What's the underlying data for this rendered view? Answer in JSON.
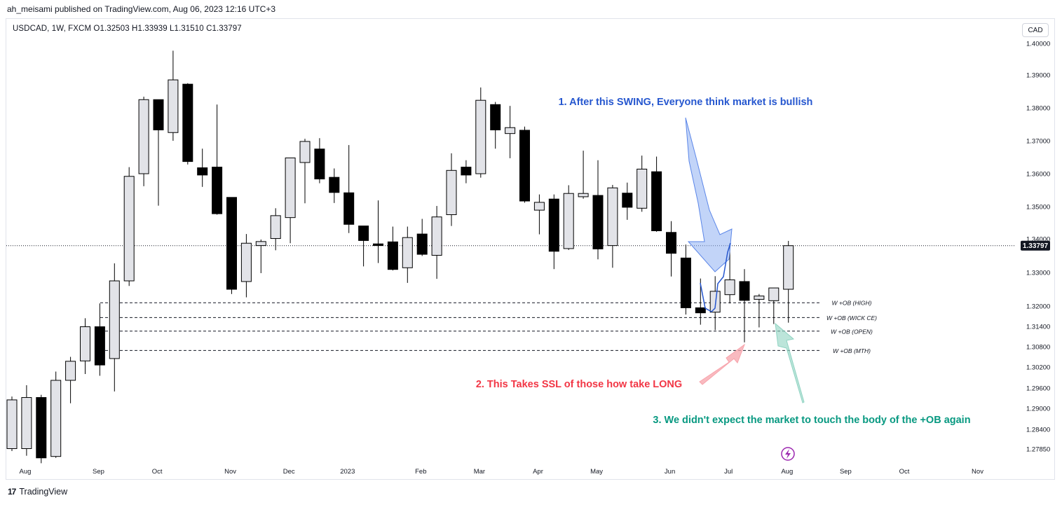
{
  "header": {
    "published_by": "ah_meisami published on TradingView.com, Aug 06, 2023 12:16 UTC+3"
  },
  "symbol_line": "USDCAD, 1W, FXCM  O1.32503  H1.33939  L1.31510  C1.33797",
  "currency": "CAD",
  "footer": {
    "logo": "17",
    "brand": "TradingView"
  },
  "colors": {
    "bull_fill": "#e2e3e8",
    "bear_fill": "#000000",
    "annotation_blue": "#2657cf",
    "annotation_red": "#f23645",
    "annotation_teal": "#089981",
    "last_price_bg": "#131722"
  },
  "chart_data": {
    "type": "candlestick",
    "timeframe": "1W",
    "symbol": "USDCAD",
    "ylim": [
      1.274,
      1.403
    ],
    "y_ticks": [
      "1.40000",
      "1.39000",
      "1.38000",
      "1.37000",
      "1.36000",
      "1.35000",
      "1.34000",
      "1.33000",
      "1.32000",
      "1.31400",
      "1.30800",
      "1.30200",
      "1.29600",
      "1.29000",
      "1.28400",
      "1.27850"
    ],
    "x_ticks": [
      {
        "label": "Aug",
        "week": 1
      },
      {
        "label": "Sep",
        "week": 6
      },
      {
        "label": "Oct",
        "week": 10
      },
      {
        "label": "Nov",
        "week": 15
      },
      {
        "label": "Dec",
        "week": 19
      },
      {
        "label": "2023",
        "week": 23
      },
      {
        "label": "Feb",
        "week": 28
      },
      {
        "label": "Mar",
        "week": 32
      },
      {
        "label": "Apr",
        "week": 36
      },
      {
        "label": "May",
        "week": 40
      },
      {
        "label": "Jun",
        "week": 45
      },
      {
        "label": "Jul",
        "week": 49
      },
      {
        "label": "Aug",
        "week": 53
      },
      {
        "label": "Sep",
        "week": 57
      },
      {
        "label": "Oct",
        "week": 61
      },
      {
        "label": "Nov",
        "week": 66
      }
    ],
    "last_price": "1.33797",
    "candles": [
      {
        "o": 1.2786,
        "h": 1.2935,
        "l": 1.2779,
        "c": 1.2925
      },
      {
        "o": 1.2786,
        "h": 1.2968,
        "l": 1.2766,
        "c": 1.2932
      },
      {
        "o": 1.2932,
        "h": 1.294,
        "l": 1.2745,
        "c": 1.276
      },
      {
        "o": 1.2764,
        "h": 1.3007,
        "l": 1.276,
        "c": 1.2982
      },
      {
        "o": 1.2982,
        "h": 1.305,
        "l": 1.2915,
        "c": 1.3037
      },
      {
        "o": 1.3038,
        "h": 1.3164,
        "l": 1.3,
        "c": 1.3139
      },
      {
        "o": 1.3139,
        "h": 1.3208,
        "l": 1.2995,
        "c": 1.3026
      },
      {
        "o": 1.3045,
        "h": 1.3327,
        "l": 1.295,
        "c": 1.3275
      },
      {
        "o": 1.3275,
        "h": 1.362,
        "l": 1.326,
        "c": 1.3592
      },
      {
        "o": 1.36,
        "h": 1.3834,
        "l": 1.3562,
        "c": 1.3825
      },
      {
        "o": 1.3825,
        "h": 1.3825,
        "l": 1.3503,
        "c": 1.3733
      },
      {
        "o": 1.3725,
        "h": 1.3977,
        "l": 1.37,
        "c": 1.3885
      },
      {
        "o": 1.3872,
        "h": 1.3875,
        "l": 1.3628,
        "c": 1.3637
      },
      {
        "o": 1.3618,
        "h": 1.3676,
        "l": 1.356,
        "c": 1.3596
      },
      {
        "o": 1.362,
        "h": 1.381,
        "l": 1.3475,
        "c": 1.3478
      },
      {
        "o": 1.3528,
        "h": 1.3528,
        "l": 1.3236,
        "c": 1.325
      },
      {
        "o": 1.3273,
        "h": 1.3415,
        "l": 1.3226,
        "c": 1.3387
      },
      {
        "o": 1.338,
        "h": 1.3398,
        "l": 1.3298,
        "c": 1.3392
      },
      {
        "o": 1.3401,
        "h": 1.3495,
        "l": 1.3366,
        "c": 1.3472
      },
      {
        "o": 1.3466,
        "h": 1.3645,
        "l": 1.3387,
        "c": 1.3648
      },
      {
        "o": 1.3634,
        "h": 1.3706,
        "l": 1.351,
        "c": 1.3698
      },
      {
        "o": 1.3675,
        "h": 1.3708,
        "l": 1.3571,
        "c": 1.3584
      },
      {
        "o": 1.3589,
        "h": 1.3616,
        "l": 1.3511,
        "c": 1.3543
      },
      {
        "o": 1.3542,
        "h": 1.3687,
        "l": 1.3418,
        "c": 1.3445
      },
      {
        "o": 1.344,
        "h": 1.344,
        "l": 1.3318,
        "c": 1.3395
      },
      {
        "o": 1.3385,
        "h": 1.3519,
        "l": 1.3328,
        "c": 1.338
      },
      {
        "o": 1.3391,
        "h": 1.3438,
        "l": 1.3306,
        "c": 1.3309
      },
      {
        "o": 1.3314,
        "h": 1.3438,
        "l": 1.3269,
        "c": 1.3404
      },
      {
        "o": 1.3415,
        "h": 1.3462,
        "l": 1.3349,
        "c": 1.3354
      },
      {
        "o": 1.3351,
        "h": 1.3502,
        "l": 1.3281,
        "c": 1.3468
      },
      {
        "o": 1.3475,
        "h": 1.3662,
        "l": 1.344,
        "c": 1.361
      },
      {
        "o": 1.362,
        "h": 1.3641,
        "l": 1.3571,
        "c": 1.3596
      },
      {
        "o": 1.36,
        "h": 1.3862,
        "l": 1.3588,
        "c": 1.3823
      },
      {
        "o": 1.381,
        "h": 1.3818,
        "l": 1.3676,
        "c": 1.3733
      },
      {
        "o": 1.3722,
        "h": 1.3806,
        "l": 1.3647,
        "c": 1.374
      },
      {
        "o": 1.3732,
        "h": 1.3743,
        "l": 1.3512,
        "c": 1.3517
      },
      {
        "o": 1.3489,
        "h": 1.3537,
        "l": 1.3414,
        "c": 1.3513
      },
      {
        "o": 1.3523,
        "h": 1.3537,
        "l": 1.331,
        "c": 1.3363
      },
      {
        "o": 1.3371,
        "h": 1.3565,
        "l": 1.3367,
        "c": 1.354
      },
      {
        "o": 1.353,
        "h": 1.367,
        "l": 1.3524,
        "c": 1.354
      },
      {
        "o": 1.3534,
        "h": 1.3641,
        "l": 1.3339,
        "c": 1.337
      },
      {
        "o": 1.338,
        "h": 1.3566,
        "l": 1.3314,
        "c": 1.3557
      },
      {
        "o": 1.3541,
        "h": 1.3573,
        "l": 1.3459,
        "c": 1.3498
      },
      {
        "o": 1.3495,
        "h": 1.3655,
        "l": 1.3484,
        "c": 1.3614
      },
      {
        "o": 1.3606,
        "h": 1.3652,
        "l": 1.3422,
        "c": 1.3425
      },
      {
        "o": 1.342,
        "h": 1.3455,
        "l": 1.3288,
        "c": 1.3357
      },
      {
        "o": 1.3343,
        "h": 1.3383,
        "l": 1.3175,
        "c": 1.3195
      },
      {
        "o": 1.3195,
        "h": 1.3282,
        "l": 1.3145,
        "c": 1.318
      },
      {
        "o": 1.3182,
        "h": 1.3289,
        "l": 1.3129,
        "c": 1.3244
      },
      {
        "o": 1.3234,
        "h": 1.3386,
        "l": 1.3208,
        "c": 1.3278
      },
      {
        "o": 1.3273,
        "h": 1.331,
        "l": 1.3093,
        "c": 1.3217
      },
      {
        "o": 1.322,
        "h": 1.3236,
        "l": 1.3137,
        "c": 1.323
      },
      {
        "o": 1.3216,
        "h": 1.3243,
        "l": 1.3147,
        "c": 1.3254
      },
      {
        "o": 1.325,
        "h": 1.33939,
        "l": 1.3151,
        "c": 1.33797
      }
    ],
    "ob_levels": [
      {
        "label": "W +OB (HIGH)",
        "price": 1.321
      },
      {
        "label": "W +OB (WICK CE)",
        "price": 1.3166
      },
      {
        "label": "W +OB (OPEN)",
        "price": 1.3126
      },
      {
        "label": "W +OB (MTH)",
        "price": 1.3069
      }
    ],
    "annotations": [
      {
        "text": "1. After this SWING, Everyone think market is bullish",
        "color": "#2657cf"
      },
      {
        "text": "2. This Takes SSL of those how take LONG",
        "color": "#f23645"
      },
      {
        "text": "3. We didn't expect the market to touch the body of the +OB again",
        "color": "#089981"
      }
    ]
  }
}
